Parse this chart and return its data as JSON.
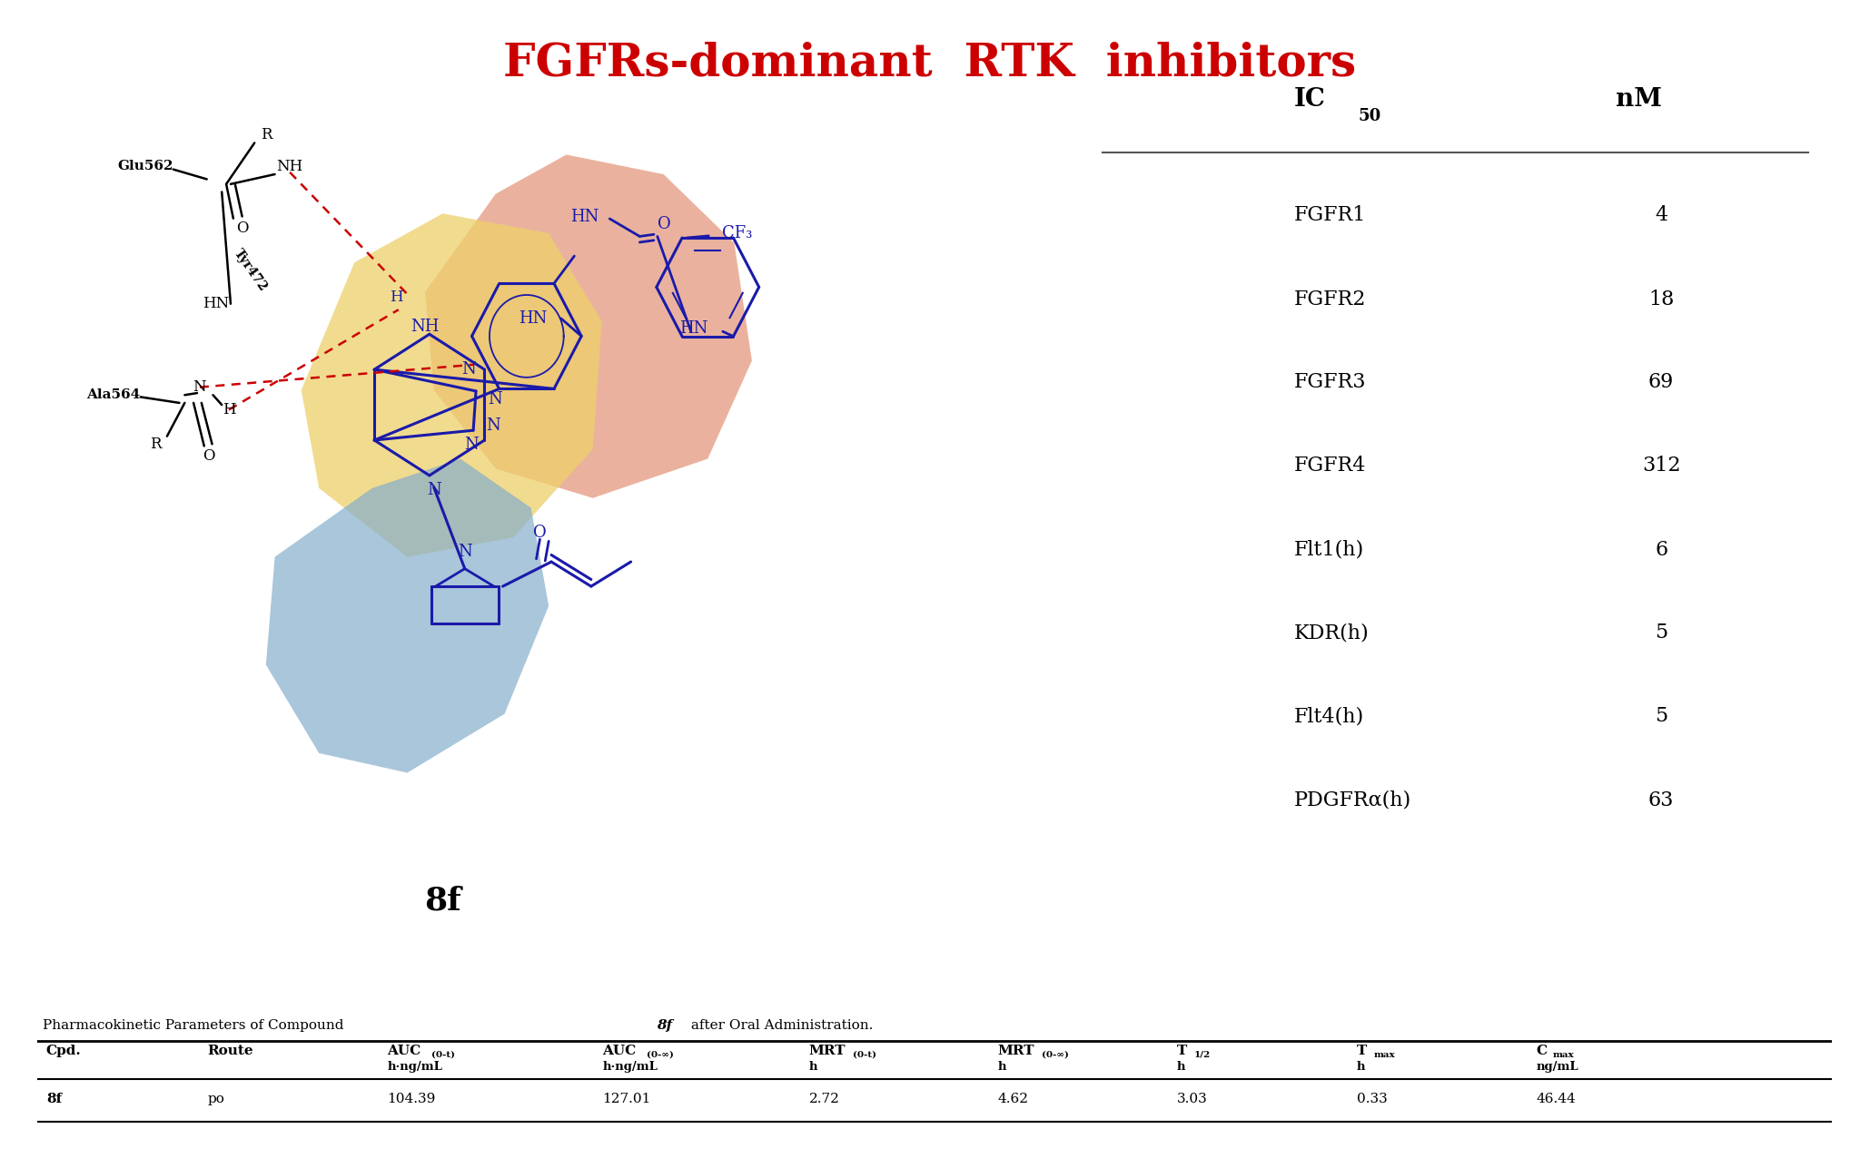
{
  "title": "FGFRs-dominant  RTK  inhibitors",
  "title_color": "#cc0000",
  "title_fontsize": 36,
  "ic50_rows": [
    [
      "FGFR1",
      "4"
    ],
    [
      "FGFR2",
      "18"
    ],
    [
      "FGFR3",
      "69"
    ],
    [
      "FGFR4",
      "312"
    ],
    [
      "Flt1(h)",
      "6"
    ],
    [
      "KDR(h)",
      "5"
    ],
    [
      "Flt4(h)",
      "5"
    ],
    [
      "PDGFRα(h)",
      "63"
    ]
  ],
  "pk_row": [
    "8f",
    "po",
    "104.39",
    "127.01",
    "2.72",
    "4.62",
    "3.03",
    "0.33",
    "46.44"
  ],
  "orange_blob_color": "#E0896A",
  "yellow_blob_color": "#EDD06A",
  "blue_blob_color": "#85AECB",
  "structure_color": "#1a1aaa",
  "binding_color": "#cc0000",
  "black": "#000000",
  "white": "#ffffff"
}
